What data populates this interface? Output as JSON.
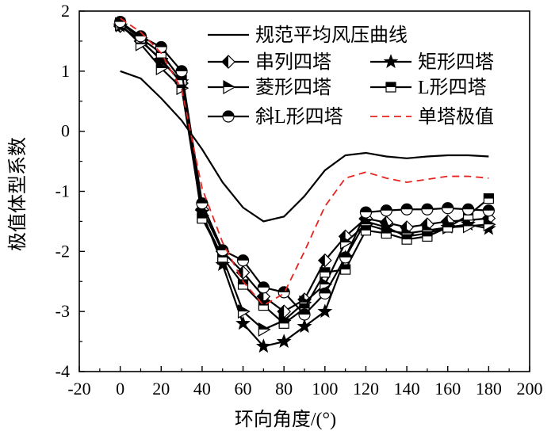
{
  "chart_data": {
    "type": "line",
    "title": "",
    "xlabel": "环向角度/(°)",
    "ylabel": "极值体型系数",
    "xlim": [
      -20,
      200
    ],
    "ylim": [
      -4,
      2
    ],
    "xticks": [
      -20,
      0,
      20,
      40,
      60,
      80,
      100,
      120,
      140,
      160,
      180,
      200
    ],
    "yticks": [
      -4,
      -3,
      -2,
      -1,
      0,
      1,
      2
    ],
    "xtick_labels": [
      "-20",
      "0",
      "20",
      "40",
      "60",
      "80",
      "100",
      "120",
      "140",
      "160",
      "180",
      "200"
    ],
    "ytick_labels": [
      "-4",
      "-3",
      "-2",
      "-1",
      "0",
      "1",
      "2"
    ],
    "grid": false,
    "legend_position": "top-right",
    "series": [
      {
        "name": "规范平均风压曲线",
        "style": "solid",
        "marker": "none",
        "color": "#000000",
        "x": [
          0,
          10,
          20,
          30,
          40,
          50,
          60,
          70,
          80,
          90,
          100,
          110,
          120,
          130,
          140,
          150,
          160,
          170,
          180
        ],
        "values": [
          1.0,
          0.88,
          0.55,
          0.18,
          -0.3,
          -0.85,
          -1.27,
          -1.5,
          -1.42,
          -1.08,
          -0.65,
          -0.4,
          -0.36,
          -0.42,
          -0.45,
          -0.42,
          -0.4,
          -0.4,
          -0.42
        ]
      },
      {
        "name": "串列四塔",
        "style": "solid",
        "marker": "diamond-half",
        "color": "#000000",
        "x": [
          0,
          10,
          20,
          30,
          40,
          50,
          60,
          70,
          80,
          90,
          100,
          110,
          120,
          130,
          140,
          150,
          160,
          170,
          180
        ],
        "values": [
          1.75,
          1.5,
          1.2,
          0.8,
          -1.3,
          -2.0,
          -2.35,
          -2.75,
          -3.0,
          -2.8,
          -2.15,
          -1.75,
          -1.45,
          -1.52,
          -1.6,
          -1.55,
          -1.5,
          -1.48,
          -1.45
        ]
      },
      {
        "name": "矩形四塔",
        "style": "solid",
        "marker": "star",
        "color": "#000000",
        "x": [
          0,
          10,
          20,
          30,
          40,
          50,
          60,
          70,
          80,
          90,
          100,
          110,
          120,
          130,
          140,
          150,
          160,
          170,
          180
        ],
        "values": [
          1.75,
          1.52,
          1.18,
          0.82,
          -1.35,
          -2.22,
          -3.2,
          -3.58,
          -3.5,
          -3.25,
          -3.0,
          -2.1,
          -1.5,
          -1.6,
          -1.75,
          -1.7,
          -1.6,
          -1.55,
          -1.62
        ]
      },
      {
        "name": "菱形四塔",
        "style": "solid",
        "marker": "triangle-right-half",
        "color": "#000000",
        "x": [
          0,
          10,
          20,
          30,
          40,
          50,
          60,
          70,
          80,
          90,
          100,
          110,
          120,
          130,
          140,
          150,
          160,
          170,
          180
        ],
        "values": [
          1.78,
          1.45,
          1.05,
          0.72,
          -1.4,
          -2.1,
          -3.0,
          -3.3,
          -3.15,
          -2.85,
          -2.55,
          -1.85,
          -1.55,
          -1.65,
          -1.7,
          -1.65,
          -1.6,
          -1.58,
          -1.55
        ]
      },
      {
        "name": "L形四塔",
        "style": "solid",
        "marker": "square-half",
        "color": "#000000",
        "x": [
          0,
          10,
          20,
          30,
          40,
          50,
          60,
          70,
          80,
          90,
          100,
          110,
          120,
          130,
          140,
          150,
          160,
          170,
          180
        ],
        "values": [
          1.8,
          1.55,
          1.3,
          0.85,
          -1.45,
          -2.1,
          -2.55,
          -2.9,
          -3.2,
          -2.95,
          -2.35,
          -2.3,
          -1.65,
          -1.7,
          -1.8,
          -1.75,
          -1.6,
          -1.4,
          -1.12
        ]
      },
      {
        "name": "斜L形四塔",
        "style": "solid",
        "marker": "circle-half",
        "color": "#000000",
        "x": [
          0,
          10,
          20,
          30,
          40,
          50,
          60,
          70,
          80,
          90,
          100,
          110,
          120,
          130,
          140,
          150,
          160,
          170,
          180
        ],
        "values": [
          1.82,
          1.58,
          1.4,
          1.0,
          -1.2,
          -1.98,
          -2.15,
          -2.6,
          -2.68,
          -3.05,
          -2.7,
          -2.1,
          -1.35,
          -1.32,
          -1.3,
          -1.3,
          -1.28,
          -1.3,
          -1.32
        ]
      },
      {
        "name": "单塔极值",
        "style": "dashed",
        "marker": "none",
        "color": "#e8231f",
        "x": [
          0,
          10,
          20,
          30,
          40,
          50,
          60,
          70,
          80,
          90,
          100,
          110,
          120,
          130,
          140,
          150,
          160,
          170,
          180
        ],
        "values": [
          1.88,
          1.65,
          1.3,
          0.7,
          -0.95,
          -1.85,
          -2.5,
          -2.9,
          -2.7,
          -2.0,
          -1.25,
          -0.78,
          -0.68,
          -0.78,
          -0.85,
          -0.8,
          -0.75,
          -0.75,
          -0.78
        ]
      }
    ]
  }
}
